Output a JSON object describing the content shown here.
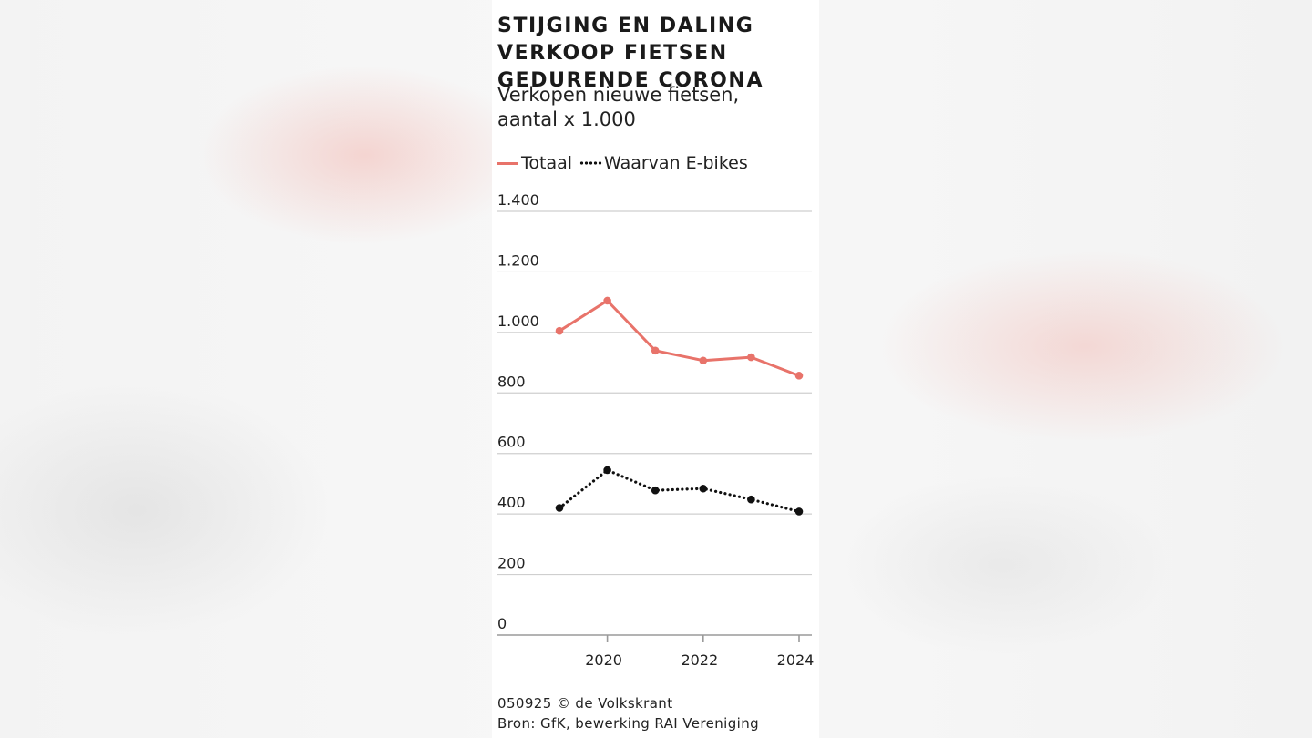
{
  "title": "STIJGING EN DALING VERKOOP FIETSEN GEDURENDE CORONA",
  "subtitle_line1": "Verkopen nieuwe fietsen,",
  "subtitle_line2": "aantal x 1.000",
  "legend": {
    "series1": "Totaal",
    "series2": "Waarvan E-bikes"
  },
  "footer": {
    "line1": "050925 © de Volkskrant",
    "line2": "Bron: GfK, bewerking RAI Vereniging"
  },
  "colors": {
    "totaal": "#e8736a",
    "ebikes": "#111111",
    "grid": "#cfcfcf"
  },
  "chart_data": {
    "type": "line",
    "x": [
      2019,
      2020,
      2021,
      2022,
      2023,
      2024
    ],
    "x_tick_values": [
      2020,
      2022,
      2024
    ],
    "x_tick_labels": [
      "2020",
      "2022",
      "2024"
    ],
    "y_ticks": [
      0,
      200,
      400,
      600,
      800,
      1000,
      1200,
      1400
    ],
    "y_tick_labels": [
      "0",
      "200",
      "400",
      "600",
      "800",
      "1.000",
      "1.200",
      "1.400"
    ],
    "ylim": [
      0,
      1400
    ],
    "grid": true,
    "legend_position": "top-left",
    "series": [
      {
        "name": "Totaal",
        "style": "solid",
        "values": [
          1005,
          1105,
          940,
          907,
          918,
          857
        ]
      },
      {
        "name": "Waarvan E-bikes",
        "style": "dotted",
        "values": [
          420,
          545,
          478,
          484,
          448,
          408
        ]
      }
    ]
  }
}
